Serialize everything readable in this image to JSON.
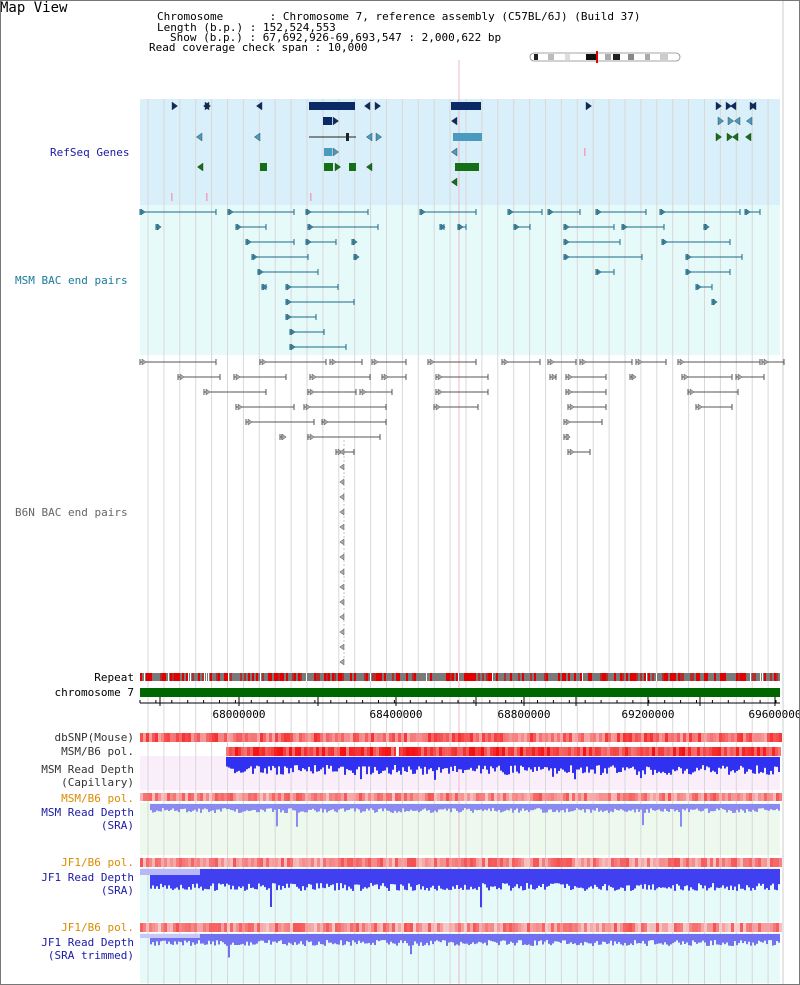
{
  "view_title": "Map View",
  "header": {
    "chromosome": "Chromosome       : Chromosome 7, reference assembly (C57BL/6J) (Build 37)",
    "length": "Length (b.p.) : 152,524,553",
    "show": "Show (b.p.) : 67,692,926-69,693,547 : 2,000,622 bp",
    "coverage": "Read coverage check span : 10,000"
  },
  "tracks": {
    "refseq": "RefSeq Genes",
    "msm_bac": "MSM BAC end pairs",
    "b6n_bac": "B6N BAC end pairs",
    "repeat": "Repeat",
    "chromosome": "chromosome 7"
  },
  "axis": {
    "ticks": [
      "68000000",
      "68400000",
      "68800000",
      "69200000",
      "69600000"
    ]
  },
  "lower_tracks": [
    {
      "line1": "dbSNP(Mouse)",
      "line2": "",
      "color": "#333333"
    },
    {
      "line1": "MSM/B6 pol.",
      "line2": "",
      "color": "#333333"
    },
    {
      "line1": "MSM Read Depth",
      "line2": "(Capillary)",
      "color": "#333333"
    },
    {
      "line1": "MSM/B6 pol.",
      "line2": "",
      "color": "#d98c00"
    },
    {
      "line1": "MSM Read Depth",
      "line2": "(SRA)",
      "color": "#1a1aa6"
    },
    {
      "line1": "JF1/B6 pol.",
      "line2": "",
      "color": "#d98c00"
    },
    {
      "line1": "JF1 Read Depth",
      "line2": "(SRA)",
      "color": "#1a1aa6"
    },
    {
      "line1": "JF1/B6 pol.",
      "line2": "",
      "color": "#d98c00"
    },
    {
      "line1": "JF1 Read Depth",
      "line2": "(SRA trimmed)",
      "color": "#1a1aa6"
    }
  ],
  "colors": {
    "refseq_bg": "#d9f0fa",
    "msm_bg": "#e6fafa",
    "refseq_label": "#1a1aa6",
    "msm_label": "#1a7a99",
    "b6n_label": "#666666",
    "chrom_bar": "#006600"
  }
}
